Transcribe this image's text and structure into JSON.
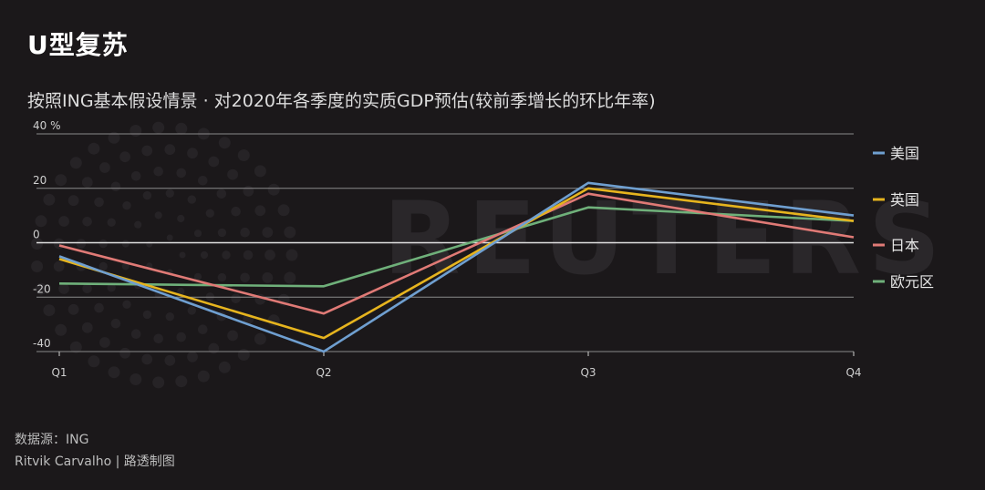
{
  "title": "U型复苏",
  "subtitle": "按照ING基本假设情景 · 对2020年各季度的实质GDP预估(较前季增长的环比年率)",
  "watermark": "REUTERS",
  "footer": {
    "source": "数据源：ING",
    "credit": "Ritvik Carvalho | 路透制图"
  },
  "colors": {
    "background": "#1b181a",
    "grid": "#8a8a8a",
    "zero_line": "#e0e0e0"
  },
  "chart_data": {
    "type": "line",
    "title": "U型复苏",
    "x": [
      "Q1",
      "Q2",
      "Q3",
      "Q4"
    ],
    "ylim": [
      -40,
      40
    ],
    "yticks": [
      40,
      20,
      0,
      -20,
      -40
    ],
    "ytick_labels": [
      "40 %",
      "20",
      "0",
      "-20",
      "-40"
    ],
    "grid": true,
    "legend_position": "right",
    "series": [
      {
        "name": "美国",
        "color": "#6f9fd0",
        "values": [
          -5,
          -40,
          22,
          10
        ]
      },
      {
        "name": "英国",
        "color": "#e6b41e",
        "values": [
          -6,
          -35,
          20,
          8
        ]
      },
      {
        "name": "日本",
        "color": "#e07a76",
        "values": [
          -1,
          -26,
          18,
          2
        ]
      },
      {
        "name": "欧元区",
        "color": "#6fb07a",
        "values": [
          -15,
          -16,
          13,
          8
        ]
      }
    ]
  }
}
